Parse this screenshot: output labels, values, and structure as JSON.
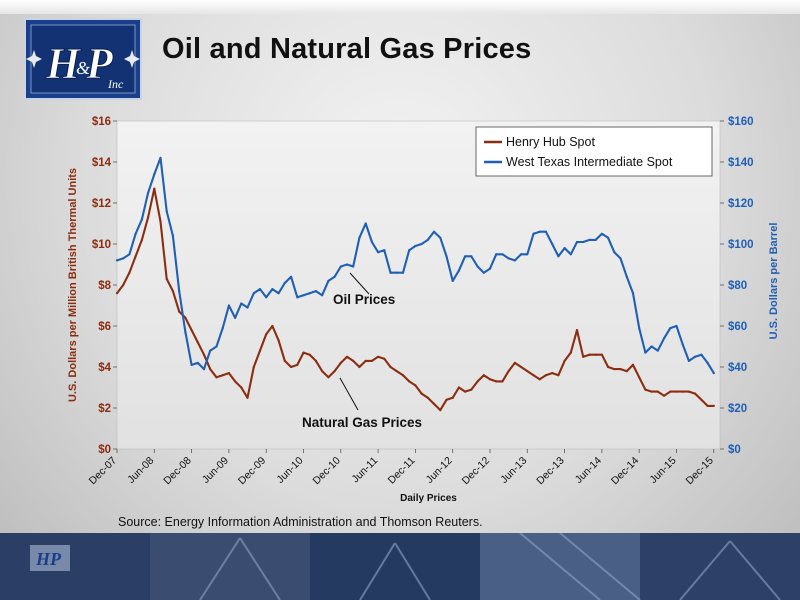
{
  "slide": {
    "title": "Oil and Natural Gas Prices",
    "source": "Source:  Energy Information Administration and Thomson Reuters.",
    "logo_text": "H&P Inc"
  },
  "chart_data": {
    "type": "line",
    "xlabel": "Daily Prices",
    "ylabel_left": "U.S. Dollars per Million British Thermal Units",
    "ylabel_right": "U.S. Dollars per Barrel",
    "x_tick_labels": [
      "Dec-07",
      "Jun-08",
      "Dec-08",
      "Jun-09",
      "Dec-09",
      "Jun-10",
      "Dec-10",
      "Jun-11",
      "Dec-11",
      "Jun-12",
      "Dec-12",
      "Jun-13",
      "Dec-13",
      "Jun-14",
      "Dec-14",
      "Jun-15",
      "Dec-15"
    ],
    "x_range": [
      "2007-12",
      "2016-01"
    ],
    "y_left_ticks": [
      "$0",
      "$2",
      "$4",
      "$6",
      "$8",
      "$10",
      "$12",
      "$14",
      "$16"
    ],
    "y_left_range": [
      0,
      16
    ],
    "y_right_ticks": [
      "$0",
      "$20",
      "$40",
      "$60",
      "$80",
      "$100",
      "$120",
      "$140",
      "$160"
    ],
    "y_right_range": [
      0,
      160
    ],
    "grid": false,
    "legend_position": "top-right",
    "annotations": [
      "Oil Prices",
      "Natural Gas Prices"
    ],
    "colors": {
      "gas": "#8b2d10",
      "oil": "#1f5fb5",
      "left_axis": "#8b2d10",
      "right_axis": "#1f5fb5"
    },
    "series": [
      {
        "name": "Henry Hub Spot",
        "axis": "left",
        "x": [
          "2007-12",
          "2008-01",
          "2008-02",
          "2008-03",
          "2008-04",
          "2008-05",
          "2008-06",
          "2008-07",
          "2008-08",
          "2008-09",
          "2008-10",
          "2008-11",
          "2008-12",
          "2009-01",
          "2009-02",
          "2009-03",
          "2009-04",
          "2009-05",
          "2009-06",
          "2009-07",
          "2009-08",
          "2009-09",
          "2009-10",
          "2009-11",
          "2009-12",
          "2010-01",
          "2010-02",
          "2010-03",
          "2010-04",
          "2010-05",
          "2010-06",
          "2010-07",
          "2010-08",
          "2010-09",
          "2010-10",
          "2010-11",
          "2010-12",
          "2011-01",
          "2011-02",
          "2011-03",
          "2011-04",
          "2011-05",
          "2011-06",
          "2011-07",
          "2011-08",
          "2011-09",
          "2011-10",
          "2011-11",
          "2011-12",
          "2012-01",
          "2012-02",
          "2012-03",
          "2012-04",
          "2012-05",
          "2012-06",
          "2012-07",
          "2012-08",
          "2012-09",
          "2012-10",
          "2012-11",
          "2012-12",
          "2013-01",
          "2013-02",
          "2013-03",
          "2013-04",
          "2013-05",
          "2013-06",
          "2013-07",
          "2013-08",
          "2013-09",
          "2013-10",
          "2013-11",
          "2013-12",
          "2014-01",
          "2014-02",
          "2014-03",
          "2014-04",
          "2014-05",
          "2014-06",
          "2014-07",
          "2014-08",
          "2014-09",
          "2014-10",
          "2014-11",
          "2014-12",
          "2015-01",
          "2015-02",
          "2015-03",
          "2015-04",
          "2015-05",
          "2015-06",
          "2015-07",
          "2015-08",
          "2015-09",
          "2015-10",
          "2015-11",
          "2015-12"
        ],
        "values": [
          7.6,
          8.0,
          8.6,
          9.4,
          10.2,
          11.3,
          12.7,
          11.1,
          8.3,
          7.7,
          6.7,
          6.4,
          5.8,
          5.2,
          4.6,
          3.9,
          3.5,
          3.6,
          3.7,
          3.3,
          3.0,
          2.5,
          4.0,
          4.8,
          5.6,
          6.0,
          5.3,
          4.3,
          4.0,
          4.1,
          4.7,
          4.6,
          4.3,
          3.8,
          3.5,
          3.8,
          4.2,
          4.5,
          4.3,
          4.0,
          4.3,
          4.3,
          4.5,
          4.4,
          4.0,
          3.8,
          3.6,
          3.3,
          3.1,
          2.7,
          2.5,
          2.2,
          1.9,
          2.4,
          2.5,
          3.0,
          2.8,
          2.9,
          3.3,
          3.6,
          3.4,
          3.3,
          3.3,
          3.8,
          4.2,
          4.0,
          3.8,
          3.6,
          3.4,
          3.6,
          3.7,
          3.6,
          4.3,
          4.7,
          5.8,
          4.5,
          4.6,
          4.6,
          4.6,
          4.0,
          3.9,
          3.9,
          3.8,
          4.1,
          3.5,
          2.9,
          2.8,
          2.8,
          2.6,
          2.8,
          2.8,
          2.8,
          2.8,
          2.7,
          2.4,
          2.1,
          2.1
        ]
      },
      {
        "name": "West Texas Intermediate Spot",
        "axis": "right",
        "x": [
          "2007-12",
          "2008-01",
          "2008-02",
          "2008-03",
          "2008-04",
          "2008-05",
          "2008-06",
          "2008-07",
          "2008-08",
          "2008-09",
          "2008-10",
          "2008-11",
          "2008-12",
          "2009-01",
          "2009-02",
          "2009-03",
          "2009-04",
          "2009-05",
          "2009-06",
          "2009-07",
          "2009-08",
          "2009-09",
          "2009-10",
          "2009-11",
          "2009-12",
          "2010-01",
          "2010-02",
          "2010-03",
          "2010-04",
          "2010-05",
          "2010-06",
          "2010-07",
          "2010-08",
          "2010-09",
          "2010-10",
          "2010-11",
          "2010-12",
          "2011-01",
          "2011-02",
          "2011-03",
          "2011-04",
          "2011-05",
          "2011-06",
          "2011-07",
          "2011-08",
          "2011-09",
          "2011-10",
          "2011-11",
          "2011-12",
          "2012-01",
          "2012-02",
          "2012-03",
          "2012-04",
          "2012-05",
          "2012-06",
          "2012-07",
          "2012-08",
          "2012-09",
          "2012-10",
          "2012-11",
          "2012-12",
          "2013-01",
          "2013-02",
          "2013-03",
          "2013-04",
          "2013-05",
          "2013-06",
          "2013-07",
          "2013-08",
          "2013-09",
          "2013-10",
          "2013-11",
          "2013-12",
          "2014-01",
          "2014-02",
          "2014-03",
          "2014-04",
          "2014-05",
          "2014-06",
          "2014-07",
          "2014-08",
          "2014-09",
          "2014-10",
          "2014-11",
          "2014-12",
          "2015-01",
          "2015-02",
          "2015-03",
          "2015-04",
          "2015-05",
          "2015-06",
          "2015-07",
          "2015-08",
          "2015-09",
          "2015-10",
          "2015-11",
          "2015-12"
        ],
        "values": [
          92,
          93,
          95,
          105,
          112,
          125,
          134,
          142,
          116,
          104,
          77,
          57,
          41,
          42,
          39,
          48,
          50,
          59,
          70,
          64,
          71,
          69,
          76,
          78,
          74,
          78,
          76,
          81,
          84,
          74,
          75,
          76,
          77,
          75,
          82,
          84,
          89,
          90,
          89,
          103,
          110,
          101,
          96,
          97,
          86,
          86,
          86,
          97,
          99,
          100,
          102,
          106,
          103,
          94,
          82,
          87,
          94,
          94,
          89,
          86,
          88,
          95,
          95,
          93,
          92,
          95,
          95,
          105,
          106,
          106,
          100,
          94,
          98,
          95,
          101,
          101,
          102,
          102,
          105,
          103,
          96,
          93,
          84,
          76,
          59,
          47,
          50,
          48,
          54,
          59,
          60,
          51,
          43,
          45,
          46,
          42,
          37
        ]
      }
    ]
  }
}
